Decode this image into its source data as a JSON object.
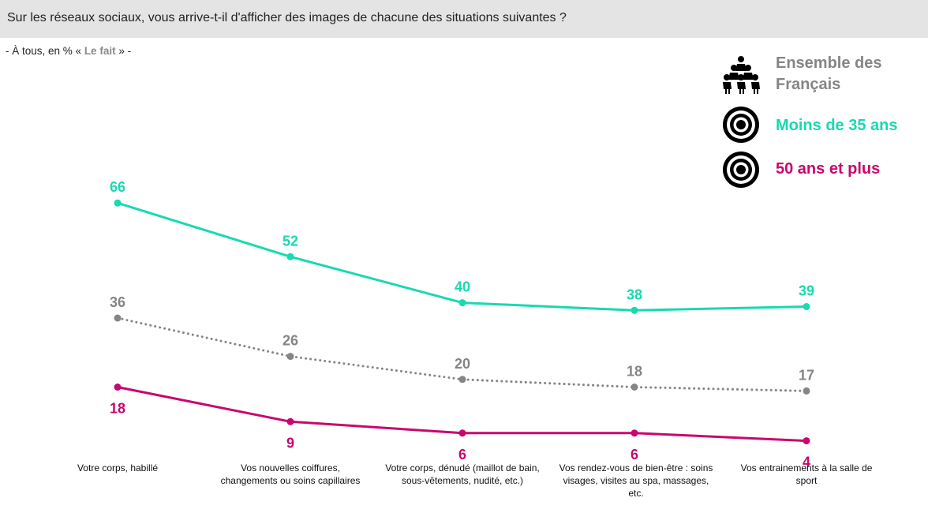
{
  "header": {
    "question": "Sur les réseaux sociaux, vous arrive-t-il d'afficher des images de chacune des situations suivantes ?"
  },
  "subtitle": {
    "prefix": "- À tous, en % « ",
    "highlight": "Le fait",
    "suffix": " » -"
  },
  "legend": {
    "items": [
      {
        "label_line1": "Ensemble des",
        "label_line2": "Français",
        "color": "#858585",
        "icon": "people-group-icon"
      },
      {
        "label": "Moins de 35 ans",
        "color": "#19d9b0",
        "icon": "target-icon"
      },
      {
        "label": "50 ans et plus",
        "color": "#c8076e",
        "icon": "target-icon"
      }
    ]
  },
  "chart_data": {
    "type": "line",
    "categories": [
      [
        "Votre corps, habillé"
      ],
      [
        "Vos nouvelles coiffures,",
        "changements ou soins capillaires"
      ],
      [
        "Votre corps, dénudé (maillot de bain,",
        "sous-vêtements, nudité, etc.)"
      ],
      [
        "Vos rendez-vous de bien-être : soins",
        "visages, visites au spa, massages,",
        "etc."
      ],
      [
        "Vos entrainements à la salle de",
        "sport"
      ]
    ],
    "series": [
      {
        "name": "Moins de 35 ans",
        "values": [
          66,
          52,
          40,
          38,
          39
        ],
        "color": "#19d9b0",
        "style": "solid"
      },
      {
        "name": "Ensemble des Français",
        "values": [
          36,
          26,
          20,
          18,
          17
        ],
        "color": "#858585",
        "style": "dotted"
      },
      {
        "name": "50 ans et plus",
        "values": [
          18,
          9,
          6,
          6,
          4
        ],
        "color": "#c8076e",
        "style": "solid"
      }
    ],
    "grid": false,
    "legend_position": "top-right"
  }
}
